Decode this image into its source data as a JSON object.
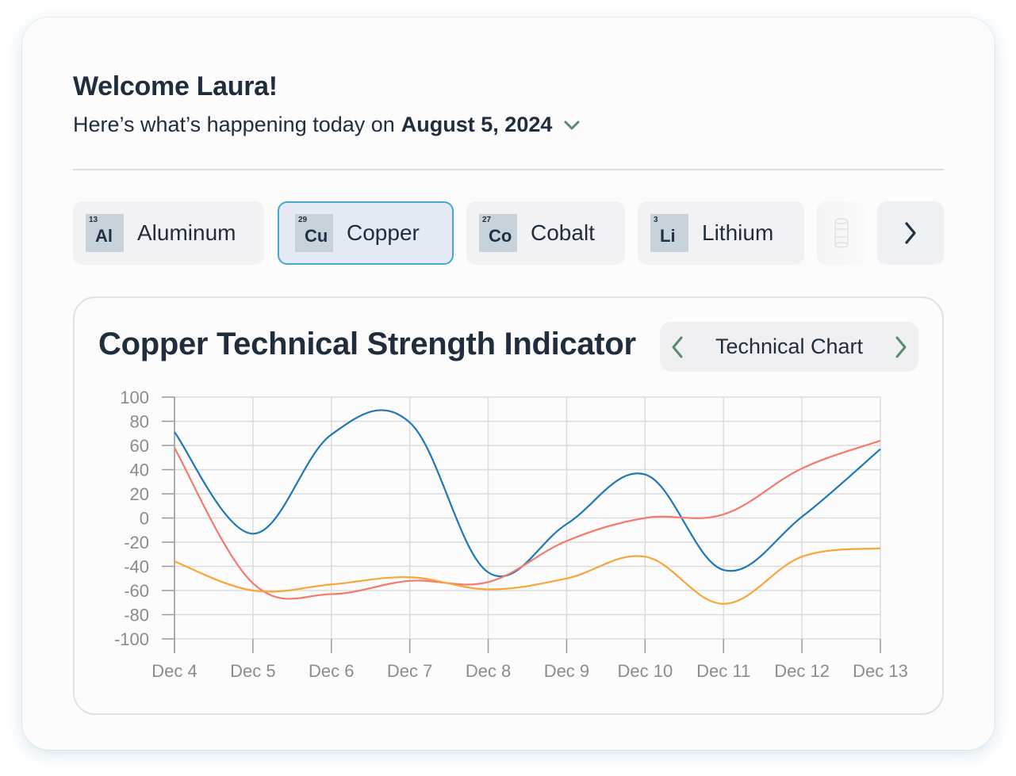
{
  "header": {
    "greeting": "Welcome Laura!",
    "subtitle_prefix": "Here’s what’s happening today on",
    "date": "August 5, 2024",
    "date_dropdown_icon": "chevron-down-icon"
  },
  "metals": [
    {
      "number": "13",
      "symbol": "Al",
      "name": "Aluminum",
      "active": false
    },
    {
      "number": "29",
      "symbol": "Cu",
      "name": "Copper",
      "active": true
    },
    {
      "number": "27",
      "symbol": "Co",
      "name": "Cobalt",
      "active": false
    },
    {
      "number": "3",
      "symbol": "Li",
      "name": "Lithium",
      "active": false
    }
  ],
  "metals_next_icon": "chevron-right-icon",
  "chart_panel": {
    "title": "Copper Technical Strength Indicator",
    "view_label": "Technical Chart",
    "prev_icon": "chevron-left-icon",
    "next_icon": "chevron-right-icon"
  },
  "colors": {
    "accent": "#5a8a6e",
    "active_border": "#48a7cf",
    "series_blue": "#1f78b4",
    "series_red": "#f47a6e",
    "series_orange": "#f7a63a"
  },
  "chart_data": {
    "type": "line",
    "categories": [
      "Dec 4",
      "Dec 5",
      "Dec 6",
      "Dec 7",
      "Dec 8",
      "Dec 9",
      "Dec 10",
      "Dec 11",
      "Dec 12",
      "Dec 13"
    ],
    "ylim": [
      -100,
      100
    ],
    "yticks": [
      100,
      80,
      60,
      40,
      20,
      0,
      -20,
      -40,
      -60,
      -80,
      -100
    ],
    "grid": true,
    "series": [
      {
        "color": "#1f78b4",
        "values": [
          71,
          -13,
          69,
          79,
          -45,
          -5,
          36,
          -43,
          1,
          57
        ]
      },
      {
        "color": "#f47a6e",
        "values": [
          58,
          -54,
          -63,
          -52,
          -53,
          -19,
          0,
          3,
          41,
          64
        ]
      },
      {
        "color": "#f7a63a",
        "values": [
          -36,
          -60,
          -55,
          -49,
          -59,
          -50,
          -32,
          -71,
          -32,
          -25
        ]
      }
    ]
  }
}
